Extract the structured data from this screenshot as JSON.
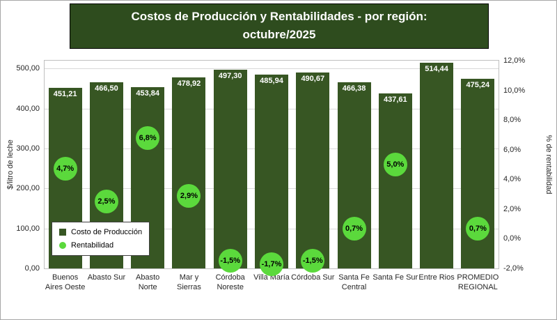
{
  "title": {
    "line1": "Costos de Producción y Rentabilidades - por región:",
    "line2": "octubre/2025"
  },
  "colors": {
    "bar_fill": "#375623",
    "bubble_fill": "#5BD93C",
    "title_bg": "#2E4C1E",
    "gridline": "#D9D9D9"
  },
  "chart_data": {
    "type": "bar",
    "title": "Costos de Producción y Rentabilidades - por región: octubre/2025",
    "grid": true,
    "legend_position": "inside-bottom-left",
    "categories": [
      "Buenos\nAires Oeste",
      "Abasto Sur",
      "Abasto\nNorte",
      "Mar y\nSierras",
      "Córdoba\nNoreste",
      "Villa María",
      "Córdoba Sur",
      "Santa Fe\nCentral",
      "Santa Fe Sur",
      "Entre Rios",
      "PROMEDIO\nREGIONAL"
    ],
    "series": [
      {
        "name": "Costo de Producción",
        "type": "bar",
        "axis": "left",
        "values": [
          451.21,
          466.5,
          453.84,
          478.92,
          497.3,
          485.94,
          490.67,
          466.38,
          437.61,
          514.44,
          475.24
        ],
        "labels": [
          "451,21",
          "466,50",
          "453,84",
          "478,92",
          "497,30",
          "485,94",
          "490,67",
          "466,38",
          "437,61",
          "514,44",
          "475,24"
        ]
      },
      {
        "name": "Rentabilidad",
        "type": "point",
        "axis": "right",
        "values": [
          4.7,
          2.5,
          6.8,
          2.9,
          -1.5,
          -1.7,
          -1.5,
          0.7,
          5.0,
          null,
          0.7
        ],
        "labels": [
          "4,7%",
          "2,5%",
          "6,8%",
          "2,9%",
          "-1,5%",
          "-1,7%",
          "-1,5%",
          "0,7%",
          "5,0%",
          null,
          "0,7%"
        ]
      }
    ],
    "left_axis": {
      "title": "$/litro de leche",
      "min": 0,
      "max": 520,
      "ticks": [
        {
          "v": 0,
          "label": "0,00"
        },
        {
          "v": 100,
          "label": "100,00"
        },
        {
          "v": 200,
          "label": "200,00"
        },
        {
          "v": 300,
          "label": "300,00"
        },
        {
          "v": 400,
          "label": "400,00"
        },
        {
          "v": 500,
          "label": "500,00"
        }
      ]
    },
    "right_axis": {
      "title": "% de rentabilidad",
      "min": -2,
      "max": 12,
      "ticks": [
        {
          "v": -2,
          "label": "-2,0%"
        },
        {
          "v": 0,
          "label": "0,0%"
        },
        {
          "v": 2,
          "label": "2,0%"
        },
        {
          "v": 4,
          "label": "4,0%"
        },
        {
          "v": 6,
          "label": "6,0%"
        },
        {
          "v": 8,
          "label": "8,0%"
        },
        {
          "v": 10,
          "label": "10,0%"
        },
        {
          "v": 12,
          "label": "12,0%"
        }
      ]
    },
    "legend": [
      {
        "label": "Costo de Producción",
        "shape": "square"
      },
      {
        "label": "Rentabilidad",
        "shape": "circle"
      }
    ]
  }
}
